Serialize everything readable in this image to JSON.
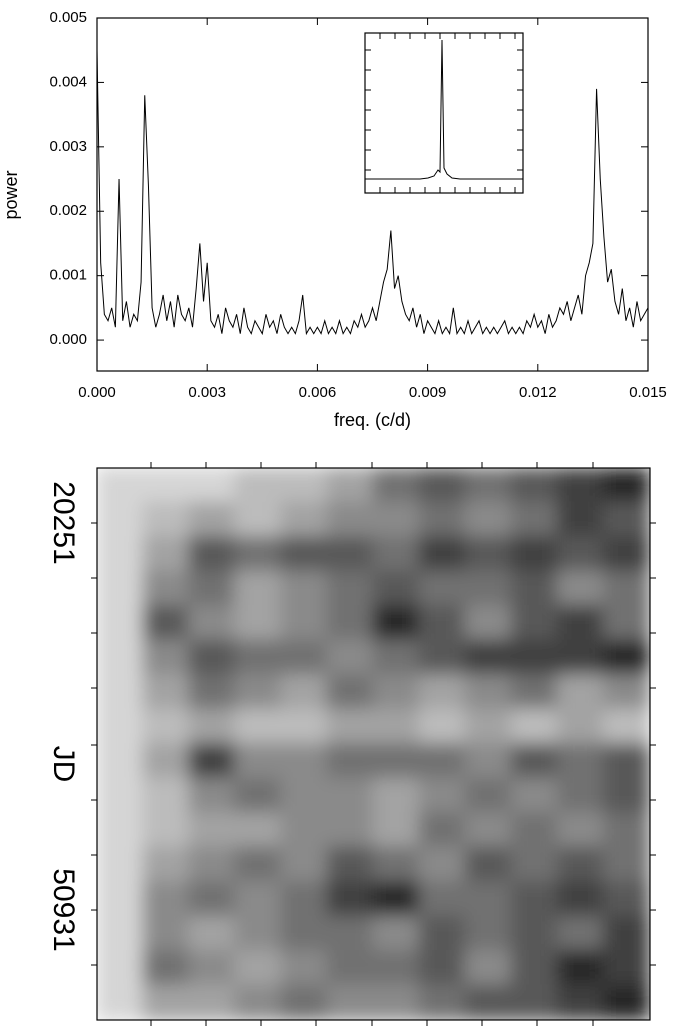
{
  "chart_data": [
    {
      "type": "line",
      "xlabel": "freq. (c/d)",
      "ylabel": "power",
      "color": "#000000",
      "xlim": [
        0,
        0.015
      ],
      "ylim": [
        -0.00048,
        0.005
      ],
      "xticks": [
        {
          "value": 0,
          "label": "0.000"
        },
        0.003,
        0.006,
        0.009,
        0.012,
        0.015
      ],
      "yticks": [
        {
          "value": 0,
          "label": "0.000"
        },
        0.001,
        0.002,
        0.003,
        0.004,
        0.005
      ],
      "x": [
        0,
        0.0001,
        0.0002,
        0.0003,
        0.0004,
        0.0005,
        0.0006,
        0.0007,
        0.0008,
        0.0009,
        0.001,
        0.0011,
        0.0012,
        0.0013,
        0.0014,
        0.0015,
        0.0016,
        0.0017,
        0.0018,
        0.0019,
        0.002,
        0.0021,
        0.0022,
        0.0023,
        0.0024,
        0.0025,
        0.0026,
        0.0027,
        0.0028,
        0.0029,
        0.003,
        0.0031,
        0.0032,
        0.0033,
        0.0034,
        0.0035,
        0.0036,
        0.0037,
        0.0038,
        0.0039,
        0.004,
        0.0041,
        0.0042,
        0.0043,
        0.0044,
        0.0045,
        0.0046,
        0.0047,
        0.0048,
        0.0049,
        0.005,
        0.0051,
        0.0052,
        0.0053,
        0.0054,
        0.0055,
        0.0056,
        0.0057,
        0.0058,
        0.0059,
        0.006,
        0.0061,
        0.0062,
        0.0063,
        0.0064,
        0.0065,
        0.0066,
        0.0067,
        0.0068,
        0.0069,
        0.007,
        0.0071,
        0.0072,
        0.0073,
        0.0074,
        0.0075,
        0.0076,
        0.0077,
        0.0078,
        0.0079,
        0.008,
        0.0081,
        0.0082,
        0.0083,
        0.0084,
        0.0085,
        0.0086,
        0.0087,
        0.0088,
        0.0089,
        0.009,
        0.0091,
        0.0092,
        0.0093,
        0.0094,
        0.0095,
        0.0096,
        0.0097,
        0.0098,
        0.0099,
        0.01,
        0.0101,
        0.0102,
        0.0103,
        0.0104,
        0.0105,
        0.0106,
        0.0107,
        0.0108,
        0.0109,
        0.011,
        0.0111,
        0.0112,
        0.0113,
        0.0114,
        0.0115,
        0.0116,
        0.0117,
        0.0118,
        0.0119,
        0.012,
        0.0121,
        0.0122,
        0.0123,
        0.0124,
        0.0125,
        0.0126,
        0.0127,
        0.0128,
        0.0129,
        0.013,
        0.0131,
        0.0132,
        0.0133,
        0.0134,
        0.0135,
        0.0136,
        0.0137,
        0.0138,
        0.0139,
        0.014,
        0.0141,
        0.0142,
        0.0143,
        0.0144,
        0.0145,
        0.0146,
        0.0147,
        0.0148,
        0.0149,
        0.015
      ],
      "values": [
        0.0045,
        0.0012,
        0.0004,
        0.0003,
        0.0005,
        0.0002,
        0.0025,
        0.0003,
        0.0006,
        0.0002,
        0.0004,
        0.0003,
        0.0009,
        0.0038,
        0.0024,
        0.0005,
        0.0002,
        0.0004,
        0.0007,
        0.0003,
        0.0006,
        0.0002,
        0.0007,
        0.0004,
        0.0003,
        0.0005,
        0.0002,
        0.0008,
        0.0015,
        0.0006,
        0.0012,
        0.0003,
        0.0002,
        0.0004,
        0.0001,
        0.0005,
        0.0003,
        0.0002,
        0.0004,
        0.0001,
        0.0005,
        0.0002,
        0.0001,
        0.0003,
        0.0002,
        0.0001,
        0.0004,
        0.0002,
        0.0003,
        0.0001,
        0.0004,
        0.0002,
        0.0001,
        0.0002,
        0.0001,
        0.0003,
        0.0007,
        0.0001,
        0.0002,
        0.0001,
        0.0002,
        0.0001,
        0.0003,
        0.0001,
        0.0002,
        0.0001,
        0.0003,
        0.0001,
        0.0002,
        0.0001,
        0.0003,
        0.0002,
        0.0004,
        0.0002,
        0.0003,
        0.0005,
        0.0003,
        0.0006,
        0.0009,
        0.0011,
        0.0017,
        0.0008,
        0.001,
        0.0006,
        0.0004,
        0.0003,
        0.0005,
        0.0002,
        0.0004,
        0.0001,
        0.0003,
        0.0002,
        0.0001,
        0.0003,
        0.0001,
        0.0002,
        0.0001,
        0.0005,
        0.0001,
        0.0002,
        0.0001,
        0.0003,
        0.0001,
        0.0002,
        0.0003,
        0.0001,
        0.0002,
        0.0001,
        0.0002,
        0.0001,
        0.0002,
        0.0003,
        0.0001,
        0.0002,
        0.0001,
        0.0002,
        0.0001,
        0.0003,
        0.0002,
        0.0004,
        0.0002,
        0.0003,
        0.0001,
        0.0004,
        0.0002,
        0.0003,
        0.0005,
        0.0004,
        0.0006,
        0.0003,
        0.0005,
        0.0007,
        0.0004,
        0.001,
        0.0012,
        0.0015,
        0.0039,
        0.0025,
        0.0016,
        0.0009,
        0.0011,
        0.0006,
        0.0004,
        0.0008,
        0.0003,
        0.0005,
        0.0002,
        0.0006,
        0.0003,
        0.0004,
        0.0005
      ]
    },
    {
      "type": "heatmap",
      "ylabel": "JD",
      "ylim": [
        15890,
        59650
      ],
      "yticks": [
        20251,
        50931
      ],
      "z": [
        [
          1,
          1,
          1,
          2,
          2,
          3,
          5,
          6,
          5,
          6,
          7,
          8
        ],
        [
          1,
          2,
          3,
          2,
          3,
          4,
          4,
          5,
          4,
          5,
          7,
          6
        ],
        [
          1,
          3,
          6,
          5,
          6,
          6,
          5,
          7,
          6,
          7,
          6,
          7
        ],
        [
          1,
          4,
          5,
          3,
          4,
          5,
          6,
          5,
          5,
          6,
          4,
          5
        ],
        [
          1,
          6,
          4,
          3,
          4,
          5,
          8,
          6,
          4,
          6,
          7,
          5
        ],
        [
          1,
          4,
          6,
          5,
          5,
          4,
          5,
          6,
          7,
          7,
          7,
          8
        ],
        [
          1,
          3,
          5,
          4,
          3,
          5,
          4,
          3,
          4,
          5,
          3,
          4
        ],
        [
          1,
          2,
          3,
          2,
          2,
          3,
          3,
          2,
          3,
          2,
          3,
          2
        ],
        [
          1,
          3,
          7,
          4,
          4,
          5,
          5,
          5,
          4,
          6,
          5,
          6
        ],
        [
          1,
          2,
          4,
          5,
          4,
          4,
          3,
          4,
          5,
          4,
          5,
          6
        ],
        [
          1,
          2,
          3,
          3,
          4,
          4,
          3,
          5,
          4,
          5,
          4,
          5
        ],
        [
          1,
          3,
          4,
          5,
          4,
          6,
          5,
          4,
          6,
          5,
          6,
          5
        ],
        [
          1,
          4,
          5,
          4,
          5,
          7,
          8,
          5,
          5,
          6,
          7,
          6
        ],
        [
          1,
          4,
          3,
          4,
          5,
          5,
          4,
          6,
          5,
          6,
          5,
          7
        ],
        [
          1,
          5,
          4,
          3,
          4,
          5,
          5,
          6,
          4,
          6,
          8,
          7
        ],
        [
          1,
          3,
          3,
          4,
          5,
          4,
          4,
          5,
          6,
          6,
          7,
          8
        ]
      ]
    }
  ]
}
